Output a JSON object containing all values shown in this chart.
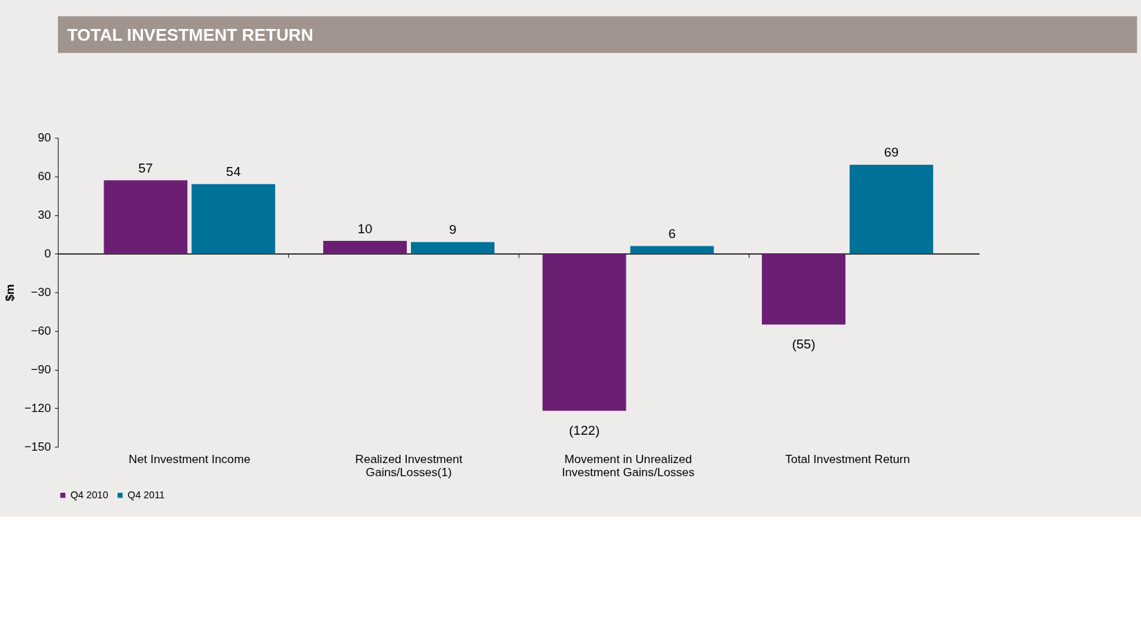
{
  "chart_data": {
    "type": "bar",
    "title": "TOTAL INVESTMENT RETURN",
    "ylabel": "$m",
    "categories": [
      "Net Investment Income",
      "Realized Investment\nGains/Losses(1)",
      "Movement in Unrealized\nInvestment Gains/Losses",
      "Total Investment Return"
    ],
    "series": [
      {
        "name": "Q4 2010",
        "color": "#6b1f73",
        "values": [
          57,
          10,
          -122,
          -55
        ],
        "value_labels": [
          "57",
          "10",
          "(122)",
          "(55)"
        ]
      },
      {
        "name": "Q4 2011",
        "color": "#00729a",
        "values": [
          54,
          9,
          6,
          69
        ],
        "value_labels": [
          "54",
          "9",
          "6",
          "69"
        ]
      }
    ],
    "ylim": [
      -150,
      90
    ],
    "yticks": [
      -150,
      -120,
      -90,
      -60,
      -30,
      0,
      30,
      60,
      90
    ],
    "legend": "bottom"
  }
}
